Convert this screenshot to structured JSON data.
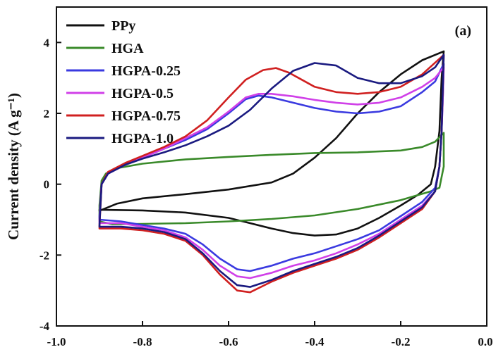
{
  "chart_data": {
    "type": "line",
    "panel_label": "(a)",
    "ylabel": "Current density (A g⁻¹)",
    "xlabel": "",
    "xlim": [
      -1.0,
      0.0
    ],
    "ylim": [
      -4,
      5
    ],
    "x_ticks": [
      -1.0,
      -0.8,
      -0.6,
      -0.4,
      -0.2,
      0.0
    ],
    "x_tick_labels": [
      "-1.0",
      "-0.8",
      "-0.6",
      "-0.4",
      "-0.2",
      "0.0"
    ],
    "y_ticks": [
      -4,
      -2,
      0,
      2,
      4
    ],
    "y_tick_labels": [
      "-4",
      "-2",
      "0",
      "2",
      "4"
    ],
    "legend_position": "top-left",
    "series": [
      {
        "name": "PPy",
        "color": "#111111",
        "points": [
          [
            -0.9,
            -0.75
          ],
          [
            -0.86,
            -0.55
          ],
          [
            -0.8,
            -0.4
          ],
          [
            -0.7,
            -0.28
          ],
          [
            -0.6,
            -0.15
          ],
          [
            -0.5,
            0.05
          ],
          [
            -0.45,
            0.3
          ],
          [
            -0.4,
            0.75
          ],
          [
            -0.35,
            1.3
          ],
          [
            -0.3,
            2.0
          ],
          [
            -0.25,
            2.6
          ],
          [
            -0.2,
            3.1
          ],
          [
            -0.15,
            3.5
          ],
          [
            -0.1,
            3.75
          ],
          [
            -0.105,
            3.0
          ],
          [
            -0.11,
            1.5
          ],
          [
            -0.12,
            0.5
          ],
          [
            -0.13,
            0.0
          ],
          [
            -0.16,
            -0.3
          ],
          [
            -0.2,
            -0.6
          ],
          [
            -0.25,
            -0.95
          ],
          [
            -0.3,
            -1.25
          ],
          [
            -0.35,
            -1.42
          ],
          [
            -0.4,
            -1.45
          ],
          [
            -0.45,
            -1.38
          ],
          [
            -0.5,
            -1.25
          ],
          [
            -0.55,
            -1.1
          ],
          [
            -0.6,
            -0.95
          ],
          [
            -0.7,
            -0.8
          ],
          [
            -0.8,
            -0.74
          ],
          [
            -0.9,
            -0.72
          ]
        ]
      },
      {
        "name": "HGA",
        "color": "#3a8a2a",
        "points": [
          [
            -0.9,
            -0.6
          ],
          [
            -0.895,
            0.1
          ],
          [
            -0.885,
            0.3
          ],
          [
            -0.86,
            0.45
          ],
          [
            -0.8,
            0.58
          ],
          [
            -0.7,
            0.7
          ],
          [
            -0.6,
            0.77
          ],
          [
            -0.5,
            0.83
          ],
          [
            -0.4,
            0.88
          ],
          [
            -0.3,
            0.9
          ],
          [
            -0.2,
            0.95
          ],
          [
            -0.15,
            1.05
          ],
          [
            -0.12,
            1.2
          ],
          [
            -0.1,
            1.45
          ],
          [
            -0.1,
            0.5
          ],
          [
            -0.11,
            -0.1
          ],
          [
            -0.13,
            -0.2
          ],
          [
            -0.2,
            -0.45
          ],
          [
            -0.3,
            -0.7
          ],
          [
            -0.4,
            -0.88
          ],
          [
            -0.5,
            -0.98
          ],
          [
            -0.6,
            -1.05
          ],
          [
            -0.7,
            -1.1
          ],
          [
            -0.8,
            -1.12
          ],
          [
            -0.87,
            -1.13
          ],
          [
            -0.9,
            -1.05
          ]
        ]
      },
      {
        "name": "HGPA-0.25",
        "color": "#3a3ae0",
        "points": [
          [
            -0.9,
            -0.9
          ],
          [
            -0.895,
            0.0
          ],
          [
            -0.88,
            0.3
          ],
          [
            -0.84,
            0.55
          ],
          [
            -0.8,
            0.75
          ],
          [
            -0.75,
            1.0
          ],
          [
            -0.7,
            1.25
          ],
          [
            -0.65,
            1.55
          ],
          [
            -0.6,
            2.0
          ],
          [
            -0.56,
            2.4
          ],
          [
            -0.53,
            2.5
          ],
          [
            -0.5,
            2.45
          ],
          [
            -0.45,
            2.3
          ],
          [
            -0.4,
            2.15
          ],
          [
            -0.35,
            2.05
          ],
          [
            -0.3,
            2.0
          ],
          [
            -0.25,
            2.05
          ],
          [
            -0.2,
            2.2
          ],
          [
            -0.15,
            2.6
          ],
          [
            -0.12,
            2.9
          ],
          [
            -0.1,
            3.4
          ],
          [
            -0.102,
            2.5
          ],
          [
            -0.105,
            1.5
          ],
          [
            -0.11,
            0.5
          ],
          [
            -0.12,
            -0.1
          ],
          [
            -0.15,
            -0.5
          ],
          [
            -0.2,
            -0.9
          ],
          [
            -0.25,
            -1.3
          ],
          [
            -0.3,
            -1.55
          ],
          [
            -0.35,
            -1.75
          ],
          [
            -0.4,
            -1.95
          ],
          [
            -0.45,
            -2.1
          ],
          [
            -0.5,
            -2.3
          ],
          [
            -0.55,
            -2.45
          ],
          [
            -0.58,
            -2.4
          ],
          [
            -0.62,
            -2.1
          ],
          [
            -0.66,
            -1.7
          ],
          [
            -0.7,
            -1.4
          ],
          [
            -0.75,
            -1.25
          ],
          [
            -0.8,
            -1.15
          ],
          [
            -0.85,
            -1.05
          ],
          [
            -0.9,
            -1.0
          ]
        ]
      },
      {
        "name": "HGPA-0.5",
        "color": "#d040e8",
        "points": [
          [
            -0.9,
            -1.0
          ],
          [
            -0.895,
            0.0
          ],
          [
            -0.88,
            0.3
          ],
          [
            -0.84,
            0.55
          ],
          [
            -0.8,
            0.75
          ],
          [
            -0.75,
            1.0
          ],
          [
            -0.7,
            1.3
          ],
          [
            -0.65,
            1.6
          ],
          [
            -0.6,
            2.05
          ],
          [
            -0.56,
            2.45
          ],
          [
            -0.53,
            2.55
          ],
          [
            -0.5,
            2.55
          ],
          [
            -0.45,
            2.48
          ],
          [
            -0.4,
            2.38
          ],
          [
            -0.35,
            2.3
          ],
          [
            -0.3,
            2.25
          ],
          [
            -0.25,
            2.3
          ],
          [
            -0.2,
            2.45
          ],
          [
            -0.15,
            2.75
          ],
          [
            -0.12,
            3.0
          ],
          [
            -0.1,
            3.3
          ],
          [
            -0.102,
            2.5
          ],
          [
            -0.105,
            1.5
          ],
          [
            -0.11,
            0.5
          ],
          [
            -0.12,
            -0.2
          ],
          [
            -0.15,
            -0.6
          ],
          [
            -0.2,
            -1.0
          ],
          [
            -0.25,
            -1.4
          ],
          [
            -0.3,
            -1.7
          ],
          [
            -0.35,
            -1.95
          ],
          [
            -0.4,
            -2.15
          ],
          [
            -0.45,
            -2.3
          ],
          [
            -0.5,
            -2.5
          ],
          [
            -0.55,
            -2.65
          ],
          [
            -0.58,
            -2.6
          ],
          [
            -0.62,
            -2.3
          ],
          [
            -0.66,
            -1.85
          ],
          [
            -0.7,
            -1.5
          ],
          [
            -0.75,
            -1.3
          ],
          [
            -0.8,
            -1.2
          ],
          [
            -0.85,
            -1.1
          ],
          [
            -0.9,
            -1.1
          ]
        ]
      },
      {
        "name": "HGPA-0.75",
        "color": "#d02020",
        "points": [
          [
            -0.9,
            -1.2
          ],
          [
            -0.895,
            0.0
          ],
          [
            -0.88,
            0.35
          ],
          [
            -0.84,
            0.6
          ],
          [
            -0.8,
            0.8
          ],
          [
            -0.75,
            1.05
          ],
          [
            -0.7,
            1.35
          ],
          [
            -0.65,
            1.8
          ],
          [
            -0.6,
            2.45
          ],
          [
            -0.56,
            2.95
          ],
          [
            -0.52,
            3.22
          ],
          [
            -0.49,
            3.28
          ],
          [
            -0.46,
            3.15
          ],
          [
            -0.43,
            2.95
          ],
          [
            -0.4,
            2.75
          ],
          [
            -0.35,
            2.6
          ],
          [
            -0.3,
            2.55
          ],
          [
            -0.25,
            2.6
          ],
          [
            -0.2,
            2.75
          ],
          [
            -0.15,
            3.1
          ],
          [
            -0.1,
            3.65
          ],
          [
            -0.102,
            2.8
          ],
          [
            -0.105,
            1.5
          ],
          [
            -0.11,
            0.5
          ],
          [
            -0.12,
            -0.2
          ],
          [
            -0.15,
            -0.7
          ],
          [
            -0.2,
            -1.1
          ],
          [
            -0.25,
            -1.5
          ],
          [
            -0.3,
            -1.85
          ],
          [
            -0.35,
            -2.1
          ],
          [
            -0.4,
            -2.3
          ],
          [
            -0.45,
            -2.5
          ],
          [
            -0.5,
            -2.75
          ],
          [
            -0.55,
            -3.05
          ],
          [
            -0.58,
            -3.0
          ],
          [
            -0.62,
            -2.55
          ],
          [
            -0.66,
            -2.0
          ],
          [
            -0.7,
            -1.6
          ],
          [
            -0.75,
            -1.4
          ],
          [
            -0.8,
            -1.3
          ],
          [
            -0.85,
            -1.25
          ],
          [
            -0.9,
            -1.25
          ]
        ]
      },
      {
        "name": "HGPA-1.0",
        "color": "#1a1a80",
        "points": [
          [
            -0.9,
            -1.15
          ],
          [
            -0.895,
            0.0
          ],
          [
            -0.88,
            0.3
          ],
          [
            -0.84,
            0.55
          ],
          [
            -0.8,
            0.72
          ],
          [
            -0.75,
            0.9
          ],
          [
            -0.7,
            1.1
          ],
          [
            -0.65,
            1.35
          ],
          [
            -0.6,
            1.65
          ],
          [
            -0.55,
            2.1
          ],
          [
            -0.5,
            2.7
          ],
          [
            -0.45,
            3.2
          ],
          [
            -0.4,
            3.42
          ],
          [
            -0.35,
            3.35
          ],
          [
            -0.3,
            3.0
          ],
          [
            -0.25,
            2.85
          ],
          [
            -0.2,
            2.85
          ],
          [
            -0.15,
            3.05
          ],
          [
            -0.12,
            3.3
          ],
          [
            -0.1,
            3.65
          ],
          [
            -0.102,
            2.8
          ],
          [
            -0.105,
            1.5
          ],
          [
            -0.11,
            0.5
          ],
          [
            -0.12,
            -0.2
          ],
          [
            -0.15,
            -0.65
          ],
          [
            -0.2,
            -1.05
          ],
          [
            -0.25,
            -1.45
          ],
          [
            -0.3,
            -1.8
          ],
          [
            -0.35,
            -2.05
          ],
          [
            -0.4,
            -2.25
          ],
          [
            -0.45,
            -2.45
          ],
          [
            -0.5,
            -2.7
          ],
          [
            -0.55,
            -2.9
          ],
          [
            -0.58,
            -2.85
          ],
          [
            -0.62,
            -2.45
          ],
          [
            -0.66,
            -1.95
          ],
          [
            -0.7,
            -1.55
          ],
          [
            -0.75,
            -1.35
          ],
          [
            -0.8,
            -1.25
          ],
          [
            -0.85,
            -1.2
          ],
          [
            -0.9,
            -1.2
          ]
        ]
      }
    ]
  }
}
